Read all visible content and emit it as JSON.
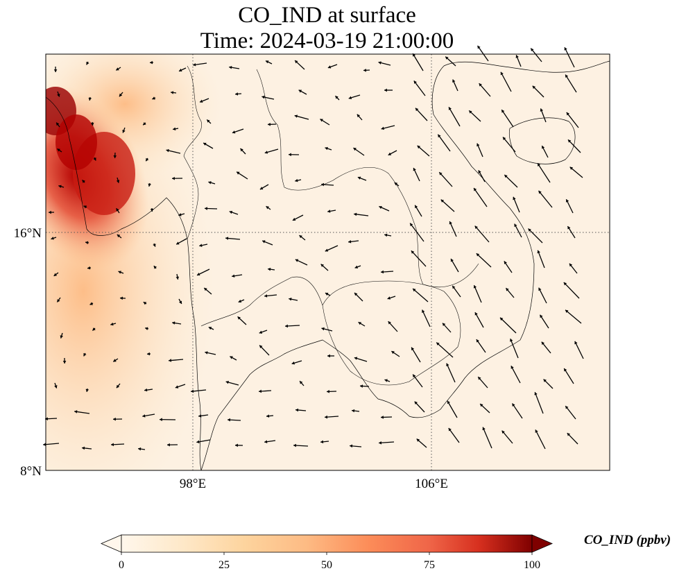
{
  "title": {
    "line1": "CO_IND at surface",
    "line2": "Time: 2024-03-19 21:00:00"
  },
  "axes": {
    "lat_labels": [
      "16°N",
      "8°N"
    ],
    "lon_labels": [
      "98°E",
      "106°E"
    ]
  },
  "colorbar": {
    "label": "CO_IND (ppbv)",
    "ticks": [
      "0",
      "25",
      "50",
      "75",
      "100"
    ],
    "min": 0,
    "max": 100,
    "colormap": "OrRd",
    "extend": "both"
  },
  "map": {
    "extent": {
      "lon_min": 93,
      "lon_max": 112,
      "lat_min": 8,
      "lat_max": 22
    },
    "gridlines": {
      "lons": [
        98,
        106
      ],
      "lats": [
        8,
        16
      ],
      "style": "dotted"
    },
    "field_description_colors": {
      "low": "#fff7ec",
      "high": "#7f0000"
    }
  }
}
